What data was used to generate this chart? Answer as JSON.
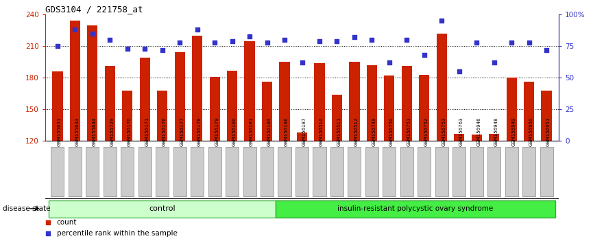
{
  "title": "GDS3104 / 221758_at",
  "samples": [
    "GSM155631",
    "GSM155643",
    "GSM155644",
    "GSM155729",
    "GSM156170",
    "GSM156171",
    "GSM156176",
    "GSM156177",
    "GSM156178",
    "GSM156179",
    "GSM156180",
    "GSM156181",
    "GSM156184",
    "GSM156186",
    "GSM156187",
    "GSM156510",
    "GSM156511",
    "GSM156512",
    "GSM156749",
    "GSM156750",
    "GSM156751",
    "GSM156752",
    "GSM156753",
    "GSM156763",
    "GSM156946",
    "GSM156948",
    "GSM156949",
    "GSM156950",
    "GSM156951"
  ],
  "bar_values": [
    186,
    234,
    230,
    191,
    168,
    199,
    168,
    204,
    220,
    181,
    187,
    215,
    176,
    195,
    128,
    194,
    164,
    195,
    192,
    182,
    191,
    183,
    222,
    127,
    126,
    127,
    180,
    176,
    168
  ],
  "pct_values": [
    75,
    88,
    85,
    80,
    73,
    73,
    72,
    78,
    88,
    78,
    79,
    83,
    78,
    80,
    62,
    79,
    79,
    82,
    80,
    62,
    80,
    68,
    95,
    55,
    78,
    62,
    78,
    78,
    72
  ],
  "n_control": 13,
  "ylim_left": [
    120,
    240
  ],
  "ylim_right": [
    0,
    100
  ],
  "yticks_left": [
    120,
    150,
    180,
    210,
    240
  ],
  "yticks_right": [
    0,
    25,
    50,
    75,
    100
  ],
  "ytick_labels_right": [
    "0",
    "25",
    "50",
    "75",
    "100%"
  ],
  "bar_color": "#cc2200",
  "dot_color": "#3333cc",
  "grid_color": "#000000",
  "bg_color": "#ffffff",
  "tick_bg": "#cccccc",
  "control_bg": "#ccffcc",
  "disease_bg": "#44ee44",
  "control_label": "control",
  "disease_label": "insulin-resistant polycystic ovary syndrome",
  "disease_state_label": "disease state",
  "legend_count": "count",
  "legend_pct": "percentile rank within the sample"
}
